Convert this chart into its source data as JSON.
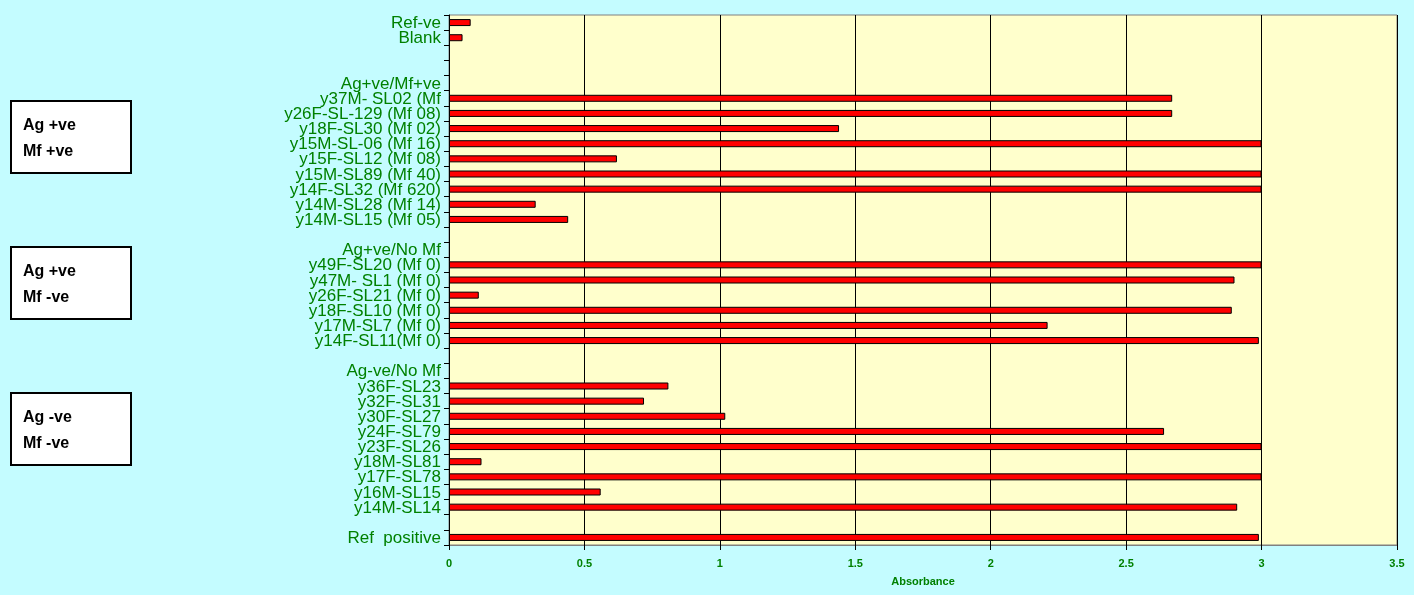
{
  "chart_data": {
    "type": "bar",
    "orientation": "horizontal",
    "xlabel": "Absorbance",
    "categories": [
      "Ref-ve",
      "Blank",
      null,
      null,
      "Ag+ve/Mf+ve",
      "y37M- SL02 (Mf",
      "y26F-SL-129 (Mf 08)",
      "y18F-SL30 (Mf 02)",
      "y15M-SL-06 (Mf 16)",
      "y15F-SL12 (Mf 08)",
      "y15M-SL89 (Mf 40)",
      "y14F-SL32 (Mf 620)",
      "y14M-SL28 (Mf 14)",
      "y14M-SL15 (Mf 05)",
      null,
      "Ag+ve/No Mf",
      "y49F-SL20 (Mf 0)",
      "y47M- SL1 (Mf 0)",
      "y26F-SL21 (Mf 0)",
      "y18F-SL10 (Mf 0)",
      "y17M-SL7 (Mf 0)",
      "y14F-SL11(Mf 0)",
      null,
      "Ag-ve/No Mf",
      "y36F-SL23",
      "y32F-SL31",
      "y30F-SL27",
      "y24F-SL79",
      "y23F-SL26",
      "y18M-SL81",
      "y17F-SL78",
      "y16M-SL15",
      "y14M-SL14",
      null,
      "Ref  positive"
    ],
    "values": [
      0.08,
      0.05,
      null,
      null,
      null,
      2.67,
      2.67,
      1.44,
      3.0,
      0.62,
      3.0,
      3.0,
      0.32,
      0.44,
      null,
      null,
      3.0,
      2.9,
      0.11,
      2.89,
      2.21,
      2.99,
      null,
      null,
      0.81,
      0.72,
      1.02,
      2.64,
      3.0,
      0.12,
      3.0,
      0.56,
      2.91,
      null,
      2.99
    ],
    "color": "#ff0000",
    "xlim": [
      0,
      3.5
    ],
    "xticks": [
      0,
      0.5,
      1,
      1.5,
      2,
      2.5,
      3,
      3.5
    ],
    "grid": "x",
    "annotations": [
      "Ag +ve\nMf +ve",
      "Ag +ve\nMf -ve",
      "Ag -ve\nMf -ve"
    ]
  }
}
